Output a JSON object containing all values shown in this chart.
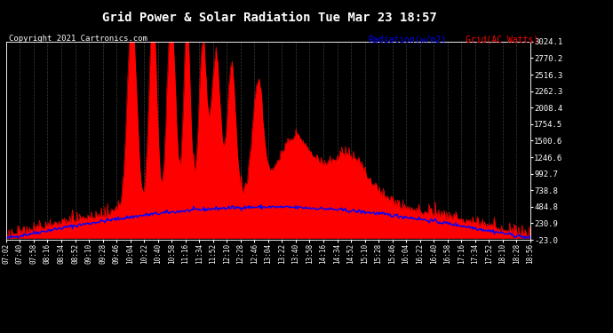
{
  "title": "Grid Power & Solar Radiation Tue Mar 23 18:57",
  "copyright": "Copyright 2021 Cartronics.com",
  "legend_radiation": "Radiation(w/m2)",
  "legend_grid": "Grid(AC Watts)",
  "ylabel_right_ticks": [
    3024.1,
    2770.2,
    2516.3,
    2262.3,
    2008.4,
    1754.5,
    1500.6,
    1246.6,
    992.7,
    738.8,
    484.8,
    230.9,
    -23.0
  ],
  "ymin": -23.0,
  "ymax": 3024.1,
  "bg_color": "#000000",
  "plot_bg_color": "#000000",
  "title_color": "#ffffff",
  "grid_line_color": "#555555",
  "radiation_color": "#0000ff",
  "grid_ac_color": "#ff0000",
  "copyright_color": "#ffffff",
  "xtick_labels": [
    "07:02",
    "07:40",
    "07:58",
    "08:16",
    "08:34",
    "08:52",
    "09:10",
    "09:28",
    "09:46",
    "10:04",
    "10:22",
    "10:40",
    "10:58",
    "11:16",
    "11:34",
    "11:52",
    "12:10",
    "12:28",
    "12:46",
    "13:04",
    "13:22",
    "13:40",
    "13:58",
    "14:16",
    "14:34",
    "14:52",
    "15:10",
    "15:28",
    "15:46",
    "16:04",
    "16:22",
    "16:40",
    "16:58",
    "17:16",
    "17:34",
    "17:52",
    "18:10",
    "18:28",
    "18:56"
  ],
  "figsize": [
    6.9,
    3.75
  ],
  "dpi": 100
}
